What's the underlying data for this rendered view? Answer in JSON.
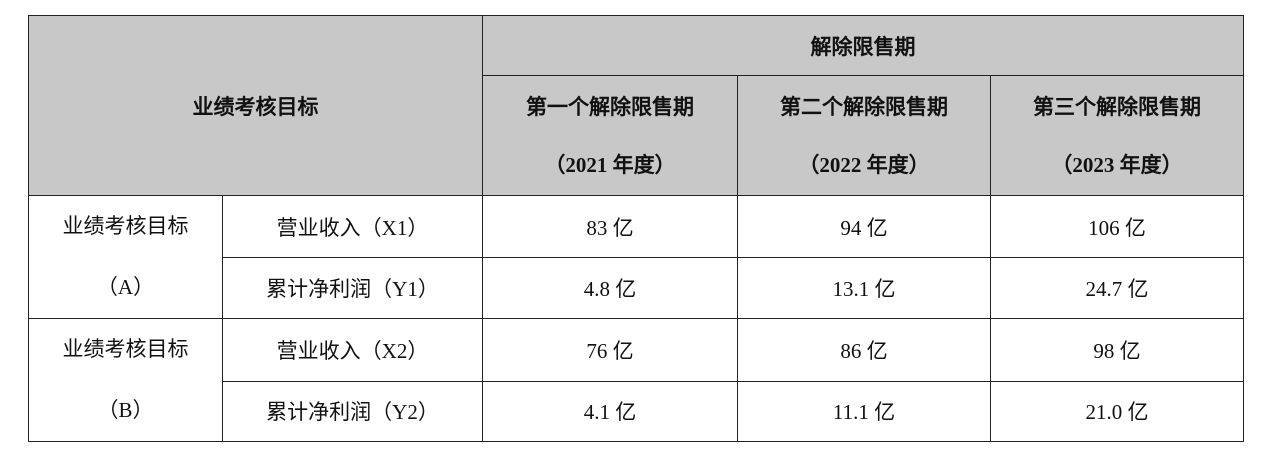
{
  "header": {
    "target": "业绩考核目标",
    "period": "解除限售期",
    "periods": [
      {
        "name": "第一个解除限售期",
        "year": "（2021 年度）"
      },
      {
        "name": "第二个解除限售期",
        "year": "（2022 年度）"
      },
      {
        "name": "第三个解除限售期",
        "year": "（2023 年度）"
      }
    ]
  },
  "groups": [
    {
      "label": "业绩考核目标",
      "sub": "（A）",
      "rows": [
        {
          "metric": "营业收入（X1）",
          "values": [
            "83 亿",
            "94 亿",
            "106 亿"
          ]
        },
        {
          "metric": "累计净利润（Y1）",
          "values": [
            "4.8 亿",
            "13.1 亿",
            "24.7 亿"
          ]
        }
      ]
    },
    {
      "label": "业绩考核目标",
      "sub": "（B）",
      "rows": [
        {
          "metric": "营业收入（X2）",
          "values": [
            "76 亿",
            "86 亿",
            "98 亿"
          ]
        },
        {
          "metric": "累计净利润（Y2）",
          "values": [
            "4.1 亿",
            "11.1 亿",
            "21.0 亿"
          ]
        }
      ]
    }
  ]
}
